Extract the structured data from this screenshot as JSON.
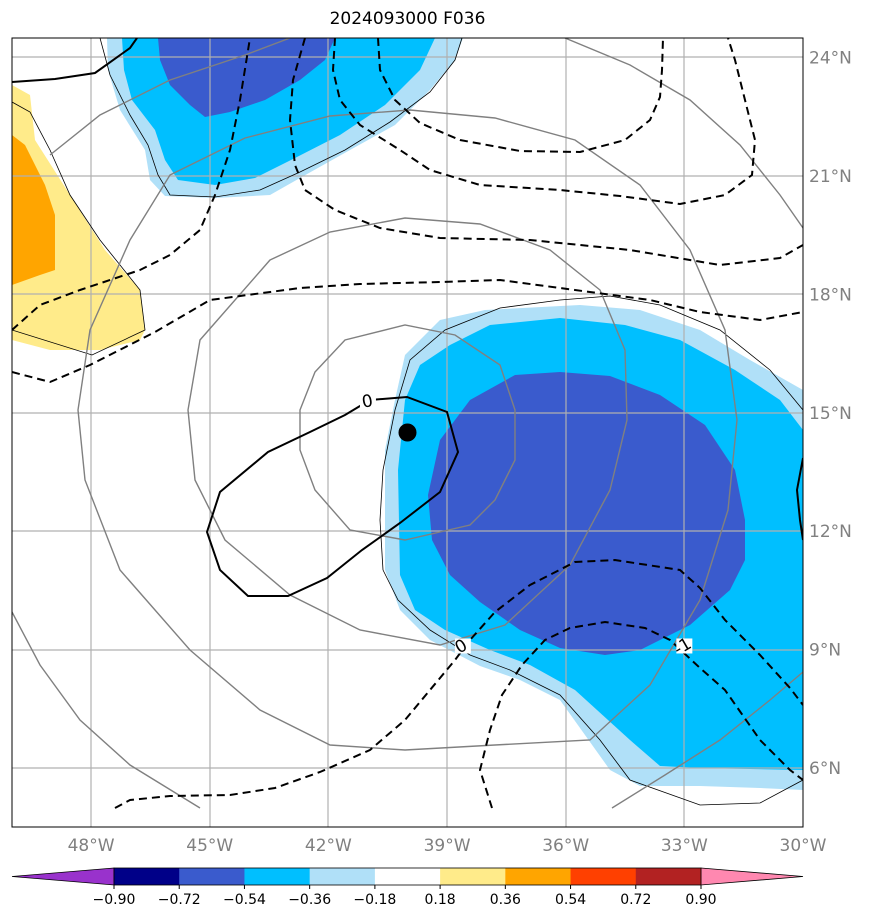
{
  "title": "2024093000 F036",
  "map": {
    "projection": "PlateCarree",
    "lon_range": [
      -50,
      -30
    ],
    "lat_range": [
      4.5,
      24.5
    ],
    "grid": true,
    "lon_ticks": [
      {
        "value": -48,
        "label": "48°W"
      },
      {
        "value": -45,
        "label": "45°W"
      },
      {
        "value": -42,
        "label": "42°W"
      },
      {
        "value": -39,
        "label": "39°W"
      },
      {
        "value": -36,
        "label": "36°W"
      },
      {
        "value": -33,
        "label": "33°W"
      },
      {
        "value": -30,
        "label": "30°W"
      }
    ],
    "lat_ticks": [
      {
        "value": 24,
        "label": "24°N"
      },
      {
        "value": 21,
        "label": "21°N"
      },
      {
        "value": 18,
        "label": "18°N"
      },
      {
        "value": 15,
        "label": "15°N"
      },
      {
        "value": 12,
        "label": "12°N"
      },
      {
        "value": 9,
        "label": "9°N"
      },
      {
        "value": 6,
        "label": "6°N"
      }
    ],
    "storm_center": {
      "lon": -40.0,
      "lat": 14.5
    },
    "contour_labels": [
      {
        "text": "0",
        "lon": -41.0,
        "lat": 15.2
      },
      {
        "text": "0",
        "lon": -38.6,
        "lat": 9.0
      },
      {
        "text": "-1",
        "lon": -33.0,
        "lat": 9.0
      }
    ]
  },
  "colorbar": {
    "levels": [
      -0.9,
      -0.72,
      -0.54,
      -0.36,
      -0.18,
      0.18,
      0.36,
      0.54,
      0.72,
      0.9
    ],
    "tick_labels": [
      "−0.90",
      "−0.72",
      "−0.54",
      "−0.36",
      "−0.18",
      "0.18",
      "0.36",
      "0.54",
      "0.72",
      "0.90"
    ],
    "colors": [
      "#000088",
      "#3a5bcd",
      "#00bfff",
      "#b0e0f8",
      "#ffffff",
      "#ffeb8a",
      "#ffa500",
      "#ff4000",
      "#b22222"
    ],
    "under_color": "#9932cc",
    "over_color": "#ff88b0"
  }
}
